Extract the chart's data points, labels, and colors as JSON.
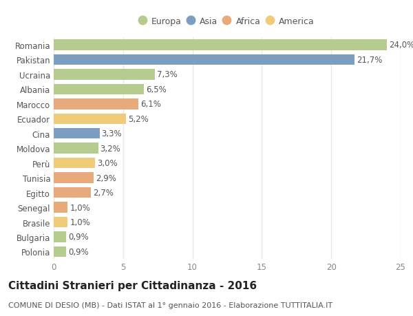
{
  "countries": [
    "Romania",
    "Pakistan",
    "Ucraina",
    "Albania",
    "Marocco",
    "Ecuador",
    "Cina",
    "Moldova",
    "Perù",
    "Tunisia",
    "Egitto",
    "Senegal",
    "Brasile",
    "Bulgaria",
    "Polonia"
  ],
  "values": [
    24.0,
    21.7,
    7.3,
    6.5,
    6.1,
    5.2,
    3.3,
    3.2,
    3.0,
    2.9,
    2.7,
    1.0,
    1.0,
    0.9,
    0.9
  ],
  "labels": [
    "24,0%",
    "21,7%",
    "7,3%",
    "6,5%",
    "6,1%",
    "5,2%",
    "3,3%",
    "3,2%",
    "3,0%",
    "2,9%",
    "2,7%",
    "1,0%",
    "1,0%",
    "0,9%",
    "0,9%"
  ],
  "colors": [
    "#b5cc8e",
    "#7a9fc0",
    "#b5cc8e",
    "#b5cc8e",
    "#e8aa7a",
    "#f0cb7a",
    "#7a9fc0",
    "#b5cc8e",
    "#f0cb7a",
    "#e8aa7a",
    "#e8aa7a",
    "#e8aa7a",
    "#f0cb7a",
    "#b5cc8e",
    "#b5cc8e"
  ],
  "legend_labels": [
    "Europa",
    "Asia",
    "Africa",
    "America"
  ],
  "legend_colors": [
    "#b5cc8e",
    "#7a9fc0",
    "#e8aa7a",
    "#f0cb7a"
  ],
  "title": "Cittadini Stranieri per Cittadinanza - 2016",
  "subtitle": "COMUNE DI DESIO (MB) - Dati ISTAT al 1° gennaio 2016 - Elaborazione TUTTITALIA.IT",
  "xlim": [
    0,
    25
  ],
  "xticks": [
    0,
    5,
    10,
    15,
    20,
    25
  ],
  "bg_color": "#ffffff",
  "plot_bg_color": "#ffffff",
  "grid_color": "#e8e8e8",
  "bar_height": 0.72,
  "label_fontsize": 8.5,
  "tick_fontsize": 8.5,
  "title_fontsize": 11,
  "subtitle_fontsize": 8
}
